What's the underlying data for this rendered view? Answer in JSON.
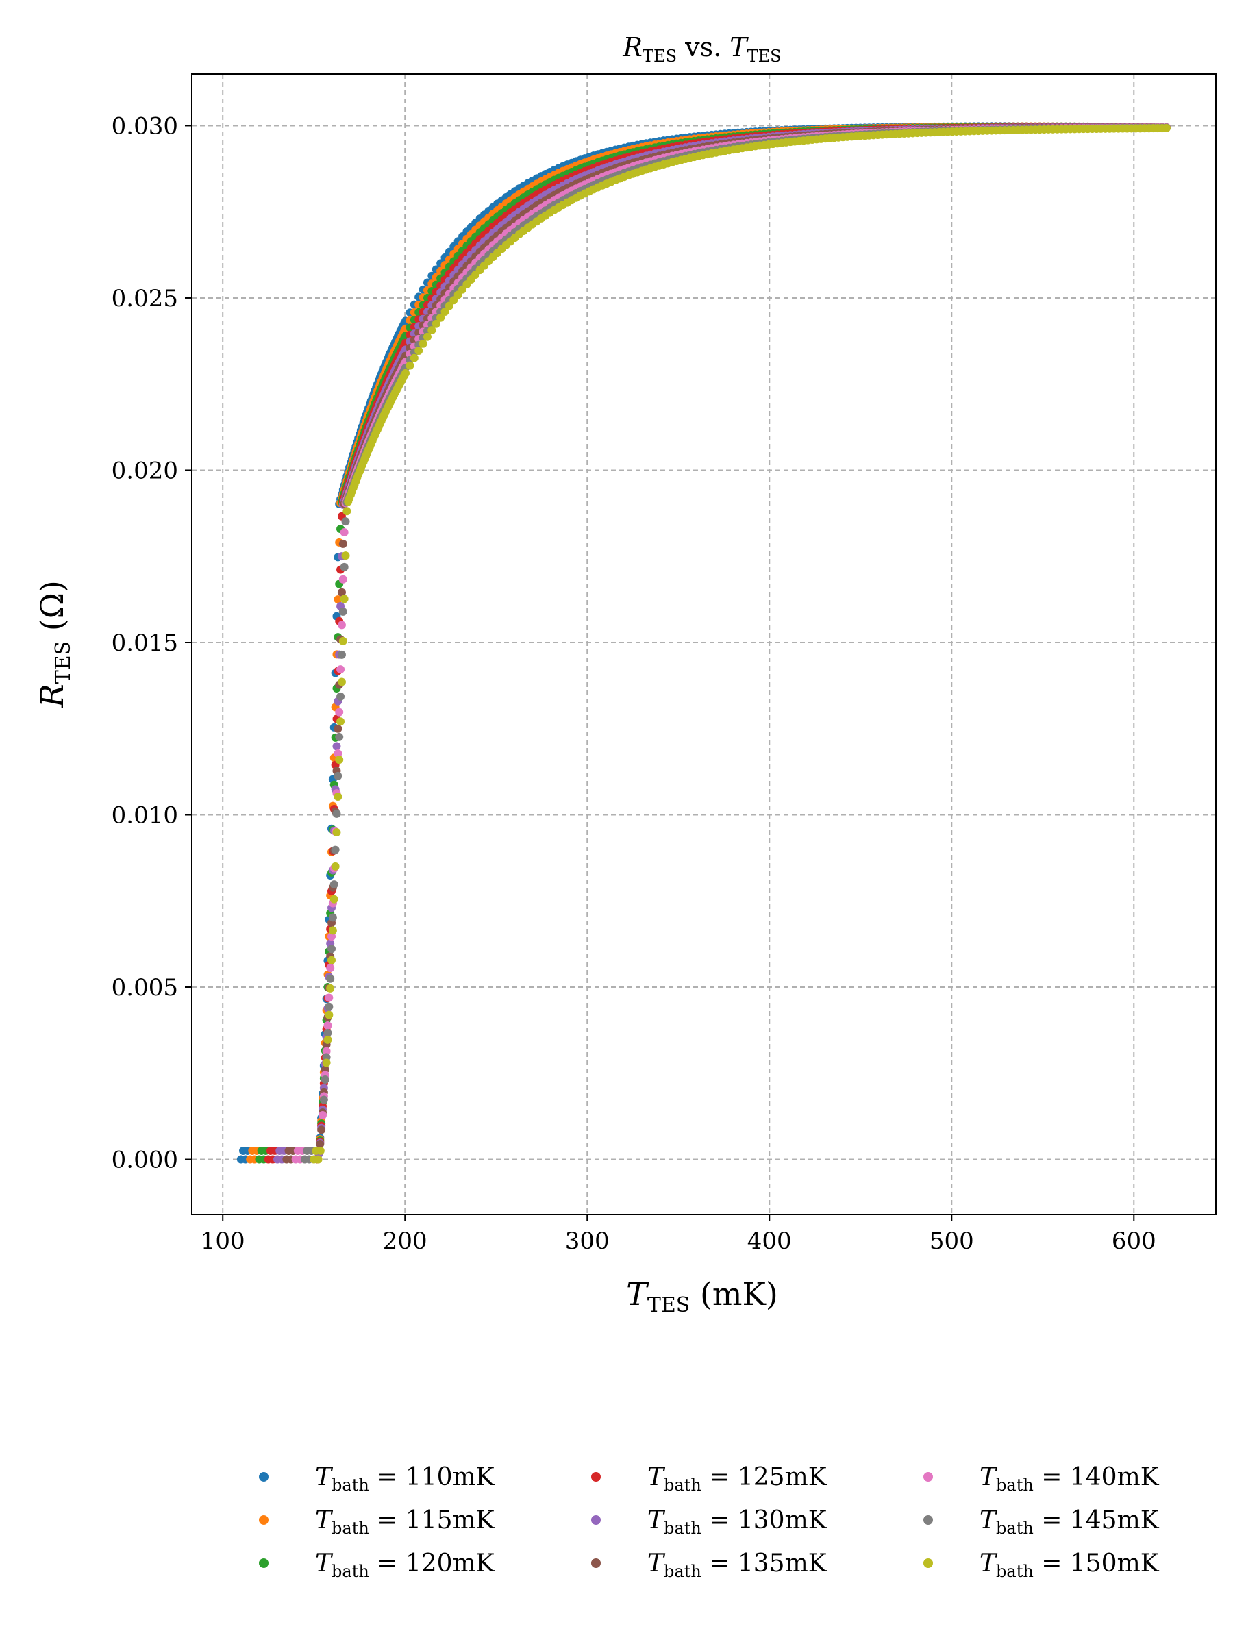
{
  "chart_data": {
    "type": "scatter",
    "title": {
      "main": "R",
      "main_sub": "TES",
      "mid": " vs. ",
      "var": "T",
      "var_sub": "TES"
    },
    "xlabel": {
      "var": "T",
      "sub": "TES",
      "unit": " (mK)"
    },
    "ylabel": {
      "var": "R",
      "sub": "TES",
      "unit": " (Ω)"
    },
    "xlim": [
      83,
      645
    ],
    "ylim": [
      -0.0016,
      0.0315
    ],
    "xticks": [
      100,
      200,
      300,
      400,
      500,
      600
    ],
    "xtick_labels": [
      "100",
      "200",
      "300",
      "400",
      "500",
      "600"
    ],
    "yticks": [
      0.0,
      0.005,
      0.01,
      0.015,
      0.02,
      0.025,
      0.03
    ],
    "ytick_labels": [
      "0.000",
      "0.005",
      "0.010",
      "0.015",
      "0.020",
      "0.025",
      "0.030"
    ],
    "grid": true,
    "legend_position": "bottom",
    "transition_temperature_mK": 160,
    "normal_resistance_ohm": 0.03,
    "x_max_mK": 618,
    "series": [
      {
        "name": "110mK",
        "t_bath": 110,
        "color": "#1f77b4",
        "label_var": "T",
        "label_sub": "bath",
        "label_eq": " = ",
        "label_val": "110mK"
      },
      {
        "name": "115mK",
        "t_bath": 115,
        "color": "#ff7f0e",
        "label_var": "T",
        "label_sub": "bath",
        "label_eq": " = ",
        "label_val": "115mK"
      },
      {
        "name": "120mK",
        "t_bath": 120,
        "color": "#2ca02c",
        "label_var": "T",
        "label_sub": "bath",
        "label_eq": " = ",
        "label_val": "120mK"
      },
      {
        "name": "125mK",
        "t_bath": 125,
        "color": "#d62728",
        "label_var": "T",
        "label_sub": "bath",
        "label_eq": " = ",
        "label_val": "125mK"
      },
      {
        "name": "130mK",
        "t_bath": 130,
        "color": "#9467bd",
        "label_var": "T",
        "label_sub": "bath",
        "label_eq": " = ",
        "label_val": "130mK"
      },
      {
        "name": "135mK",
        "t_bath": 135,
        "color": "#8c564b",
        "label_var": "T",
        "label_sub": "bath",
        "label_eq": " = ",
        "label_val": "135mK"
      },
      {
        "name": "140mK",
        "t_bath": 140,
        "color": "#e377c2",
        "label_var": "T",
        "label_sub": "bath",
        "label_eq": " = ",
        "label_val": "140mK"
      },
      {
        "name": "145mK",
        "t_bath": 145,
        "color": "#7f7f7f",
        "label_var": "T",
        "label_sub": "bath",
        "label_eq": " = ",
        "label_val": "145mK"
      },
      {
        "name": "150mK",
        "t_bath": 150,
        "color": "#bcbd22",
        "label_var": "T",
        "label_sub": "bath",
        "label_eq": " = ",
        "label_val": "150mK"
      }
    ]
  }
}
